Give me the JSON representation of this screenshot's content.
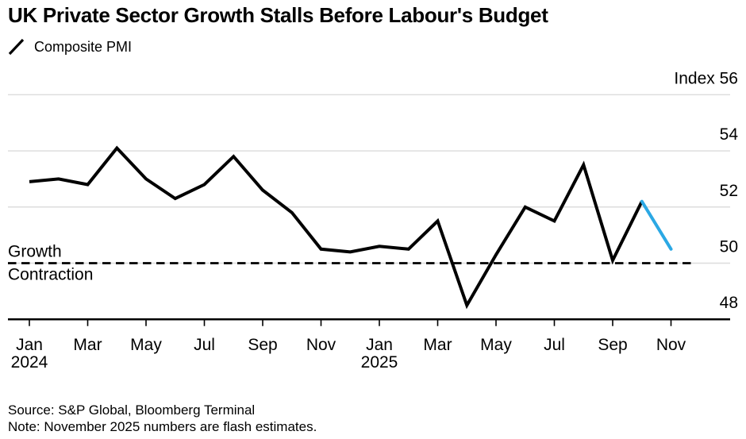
{
  "header": {
    "title": "UK Private Sector Growth Stalls Before Labour's Budget",
    "legend": {
      "label": "Composite PMI",
      "line_color": "#000000"
    }
  },
  "chart_data": {
    "type": "line",
    "title": "UK Private Sector Growth Stalls Before Labour's Budget",
    "series_name": "Composite PMI",
    "x": [
      "Jan 2024",
      "Feb 2024",
      "Mar 2024",
      "Apr 2024",
      "May 2024",
      "Jun 2024",
      "Jul 2024",
      "Aug 2024",
      "Sep 2024",
      "Oct 2024",
      "Nov 2024",
      "Dec 2024",
      "Jan 2025",
      "Feb 2025",
      "Mar 2025",
      "Apr 2025",
      "May 2025",
      "Jun 2025",
      "Jul 2025",
      "Aug 2025",
      "Sep 2025",
      "Oct 2025",
      "Nov 2025"
    ],
    "values": [
      52.9,
      53.0,
      52.8,
      54.1,
      53.0,
      52.3,
      52.8,
      53.8,
      52.6,
      51.8,
      50.5,
      50.4,
      50.6,
      50.5,
      51.5,
      48.5,
      50.3,
      52.0,
      51.5,
      53.5,
      50.1,
      52.2,
      50.5
    ],
    "flash_tail_segments": 1,
    "line_color": "#000000",
    "flash_color": "#2BA8E4",
    "grid_color": "#DCDCDC",
    "grid": true,
    "legend_position": "top-left",
    "ylim": [
      47.5,
      56.5
    ],
    "y_axis": {
      "unit_label": "Index",
      "ticks": [
        48,
        50,
        52,
        54,
        56
      ],
      "top_tick_label": "Index 56"
    },
    "x_axis": {
      "tick_month_step": 2,
      "tick_labels": [
        "Jan",
        "Mar",
        "May",
        "Jul",
        "Sep",
        "Nov",
        "Jan",
        "Mar",
        "May",
        "Jul",
        "Sep",
        "Nov"
      ],
      "year_labels": [
        {
          "text": "2024",
          "month_index": 0
        },
        {
          "text": "2025",
          "month_index": 12
        }
      ]
    },
    "threshold": {
      "value": 50,
      "style": "dashed",
      "above_label": "Growth",
      "below_label": "Contraction"
    }
  },
  "footer": {
    "source": "Source: S&P Global, Bloomberg Terminal",
    "note": "Note: November 2025 numbers are flash estimates."
  }
}
